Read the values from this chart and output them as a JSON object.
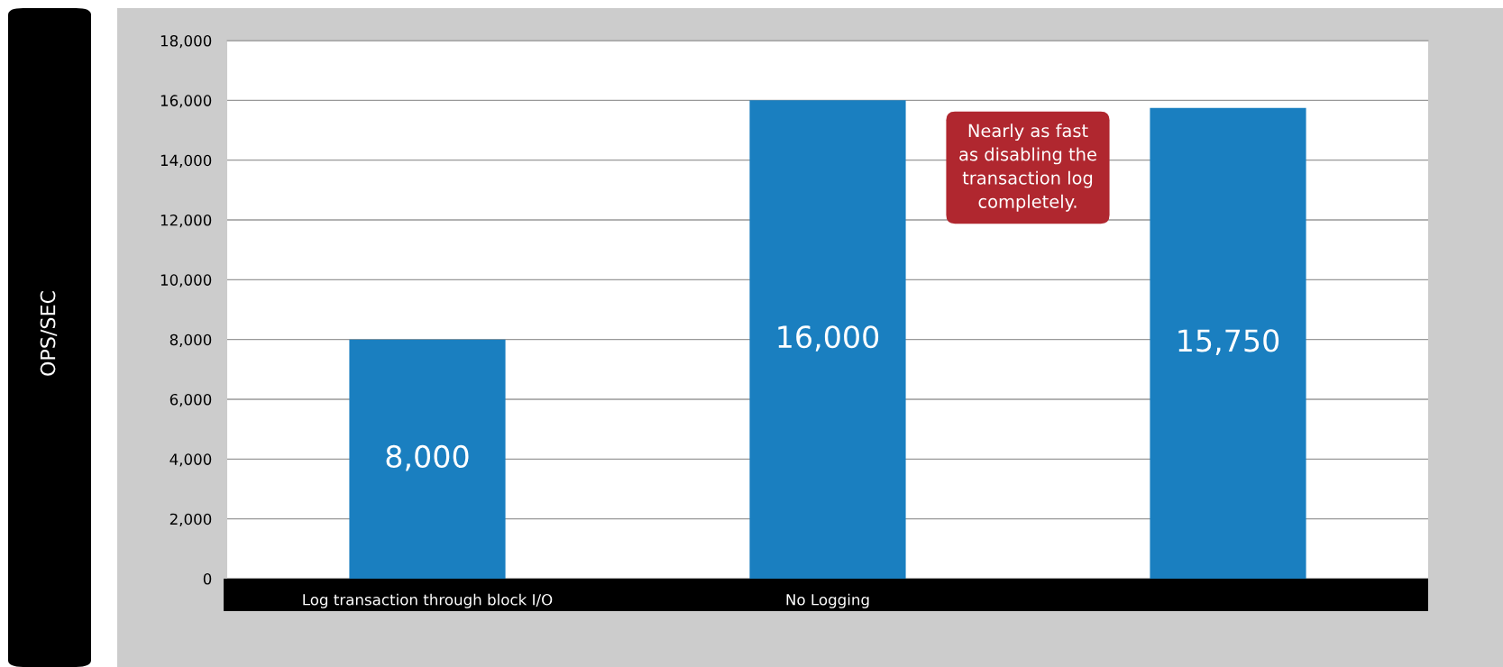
{
  "chart_data": {
    "type": "bar",
    "categories": [
      "Log transaction through block I/O",
      "No Logging",
      null
    ],
    "values": [
      8000,
      16000,
      15750
    ],
    "value_labels": [
      "8,000",
      "16,000",
      "15,750"
    ],
    "color": "#1a7fc0",
    "ylim": [
      0,
      18000
    ],
    "yticks": [
      {
        "value": 0,
        "label": "0"
      },
      {
        "value": 2000,
        "label": "2,000"
      },
      {
        "value": 4000,
        "label": "4,000"
      },
      {
        "value": 6000,
        "label": "6,000"
      },
      {
        "value": 8000,
        "label": "8,000"
      },
      {
        "value": 10000,
        "label": "10,000"
      },
      {
        "value": 12000,
        "label": "12,000"
      },
      {
        "value": 14000,
        "label": "14,000"
      },
      {
        "value": 16000,
        "label": "16,000"
      },
      {
        "value": 18000,
        "label": "18,000"
      }
    ],
    "grid": "y",
    "annotations": [
      "OPS/SEC",
      "Nearly as fast\nas disabling the\ntransaction log\ncompletely."
    ]
  }
}
